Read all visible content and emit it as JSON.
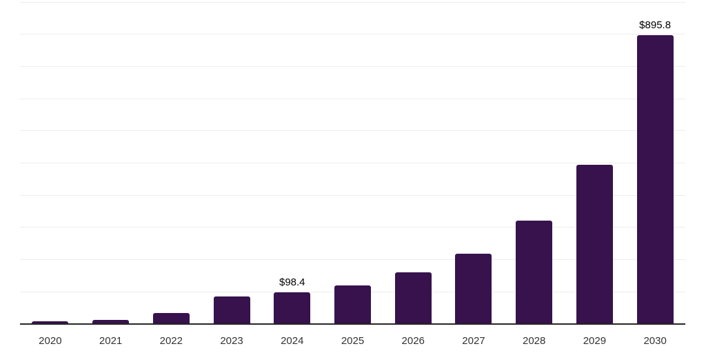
{
  "chart_data": {
    "type": "bar",
    "title": "",
    "xlabel": "",
    "ylabel": "",
    "ylim": [
      0,
      1000
    ],
    "gridline_interval": 100,
    "grid_visible": true,
    "legend": null,
    "categories": [
      "2020",
      "2021",
      "2022",
      "2023",
      "2024",
      "2025",
      "2026",
      "2027",
      "2028",
      "2029",
      "2030"
    ],
    "values": [
      7.0,
      12.1,
      32.6,
      84.6,
      98.4,
      119.3,
      159.1,
      217.2,
      319.5,
      493.5,
      895.8
    ],
    "data_labels": [
      "",
      "",
      "",
      "",
      "$98.4",
      "",
      "",
      "",
      "",
      "",
      "$895.8"
    ],
    "currency_prefix": "$",
    "colors": {
      "bar": "#37124D",
      "gridline": "#ededed",
      "axis_line": "#262626",
      "year_label": "#333333",
      "value_label": "#000000",
      "background": "#ffffff"
    }
  }
}
